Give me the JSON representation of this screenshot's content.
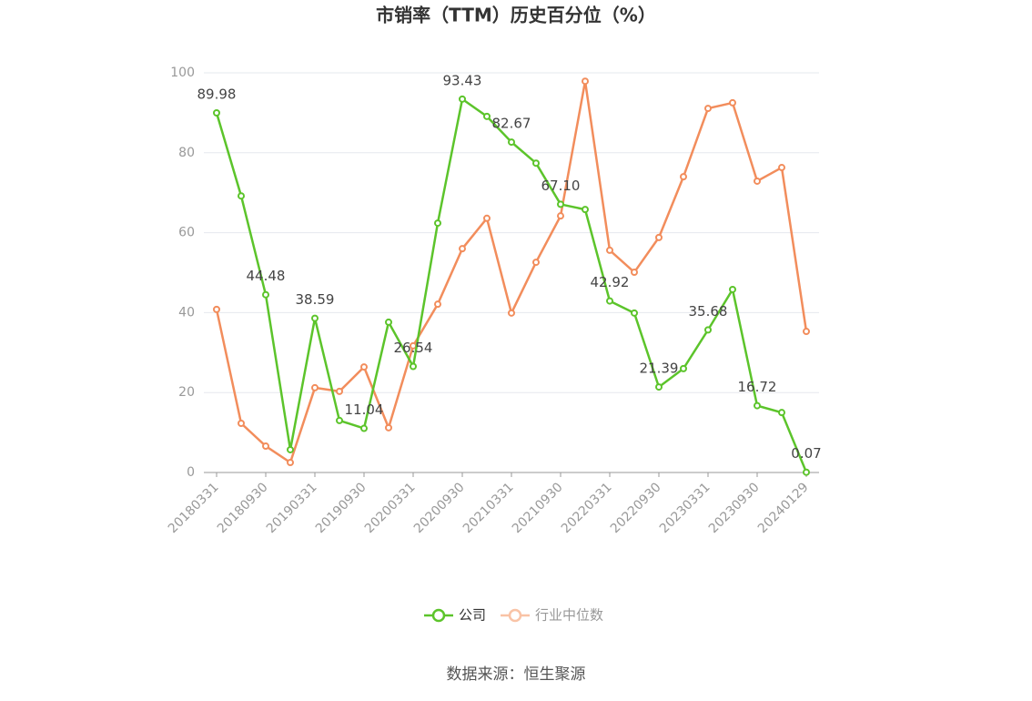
{
  "chart_data": {
    "type": "line",
    "title": "市销率（TTM）历史百分位（%）",
    "source": "数据来源：恒生聚源",
    "categories": [
      "20180331",
      null,
      "20180930",
      null,
      "20190331",
      null,
      "20190930",
      null,
      "20200331",
      null,
      "20200930",
      null,
      "20210331",
      null,
      "20210930",
      null,
      "20220331",
      null,
      "20220930",
      null,
      "20230331",
      null,
      "20230930",
      null,
      "20240129"
    ],
    "series": [
      {
        "name": "公司",
        "color": "#5cc42b",
        "values": [
          89.98,
          69.2,
          44.48,
          5.7,
          38.59,
          13.0,
          11.04,
          37.6,
          26.54,
          62.4,
          93.43,
          89.1,
          82.67,
          77.4,
          67.1,
          65.8,
          42.92,
          39.9,
          21.39,
          26.0,
          35.68,
          45.8,
          16.72,
          15.0,
          0.07
        ],
        "value_labels": [
          "89.98",
          null,
          "44.48",
          null,
          "38.59",
          null,
          "11.04",
          null,
          "26.54",
          null,
          "93.43",
          null,
          "82.67",
          null,
          "67.10",
          null,
          "42.92",
          null,
          "21.39",
          null,
          "35.68",
          null,
          "16.72",
          null,
          "0.07"
        ]
      },
      {
        "name": "行业中位数",
        "color": "#f28d5c",
        "values": [
          40.8,
          12.3,
          6.6,
          2.5,
          21.2,
          20.3,
          26.4,
          11.2,
          31.7,
          42.1,
          56.0,
          63.6,
          39.9,
          52.6,
          64.2,
          97.9,
          55.6,
          50.1,
          58.8,
          74.0,
          91.1,
          92.5,
          72.9,
          76.3,
          35.3
        ]
      }
    ],
    "ylim": [
      0,
      100
    ],
    "yticks": [
      0,
      20,
      40,
      60,
      80,
      100
    ],
    "grid": true
  }
}
